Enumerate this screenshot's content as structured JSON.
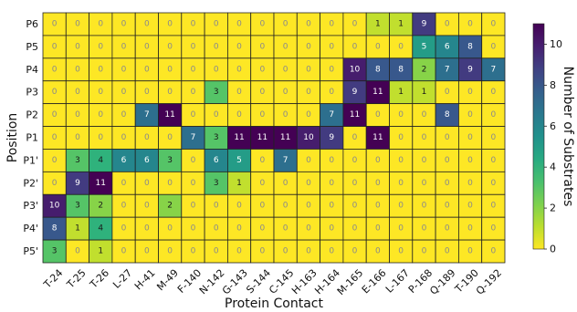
{
  "chart_data": {
    "type": "heatmap",
    "title": "",
    "xlabel": "Protein Contact",
    "ylabel": "Position",
    "x_categories": [
      "T-24",
      "T-25",
      "T-26",
      "L-27",
      "H-41",
      "M-49",
      "F-140",
      "N-142",
      "G-143",
      "S-144",
      "C-145",
      "H-163",
      "H-164",
      "M-165",
      "E-166",
      "L-167",
      "P-168",
      "Q-189",
      "T-190",
      "Q-192"
    ],
    "y_categories": [
      "P6",
      "P5",
      "P4",
      "P3",
      "P2",
      "P1",
      "P1'",
      "P2'",
      "P3'",
      "P4'",
      "P5'"
    ],
    "values": [
      [
        0,
        0,
        0,
        0,
        0,
        0,
        0,
        0,
        0,
        0,
        0,
        0,
        0,
        0,
        1,
        1,
        9,
        0,
        0,
        0
      ],
      [
        0,
        0,
        0,
        0,
        0,
        0,
        0,
        0,
        0,
        0,
        0,
        0,
        0,
        0,
        0,
        0,
        5,
        6,
        8,
        0
      ],
      [
        0,
        0,
        0,
        0,
        0,
        0,
        0,
        0,
        0,
        0,
        0,
        0,
        0,
        10,
        8,
        8,
        2,
        7,
        9,
        7
      ],
      [
        0,
        0,
        0,
        0,
        0,
        0,
        0,
        3,
        0,
        0,
        0,
        0,
        0,
        9,
        11,
        1,
        1,
        0,
        0,
        0
      ],
      [
        0,
        0,
        0,
        0,
        7,
        11,
        0,
        0,
        0,
        0,
        0,
        0,
        7,
        11,
        0,
        0,
        0,
        8,
        0,
        0
      ],
      [
        0,
        0,
        0,
        0,
        0,
        0,
        7,
        3,
        11,
        11,
        11,
        10,
        9,
        0,
        11,
        0,
        0,
        0,
        0,
        0
      ],
      [
        0,
        3,
        4,
        6,
        6,
        3,
        0,
        6,
        5,
        0,
        7,
        0,
        0,
        0,
        0,
        0,
        0,
        0,
        0,
        0
      ],
      [
        0,
        9,
        11,
        0,
        0,
        0,
        0,
        3,
        1,
        0,
        0,
        0,
        0,
        0,
        0,
        0,
        0,
        0,
        0,
        0
      ],
      [
        10,
        3,
        2,
        0,
        0,
        2,
        0,
        0,
        0,
        0,
        0,
        0,
        0,
        0,
        0,
        0,
        0,
        0,
        0,
        0
      ],
      [
        8,
        1,
        4,
        0,
        0,
        0,
        0,
        0,
        0,
        0,
        0,
        0,
        0,
        0,
        0,
        0,
        0,
        0,
        0,
        0
      ],
      [
        3,
        0,
        1,
        0,
        0,
        0,
        0,
        0,
        0,
        0,
        0,
        0,
        0,
        0,
        0,
        0,
        0,
        0,
        0,
        0
      ]
    ],
    "colorscale": "viridis_r",
    "vmin": 0,
    "vmax": 11,
    "colorbar": {
      "label": "Number of Substrates",
      "ticks": [
        0,
        2,
        4,
        6,
        8,
        10
      ]
    }
  }
}
